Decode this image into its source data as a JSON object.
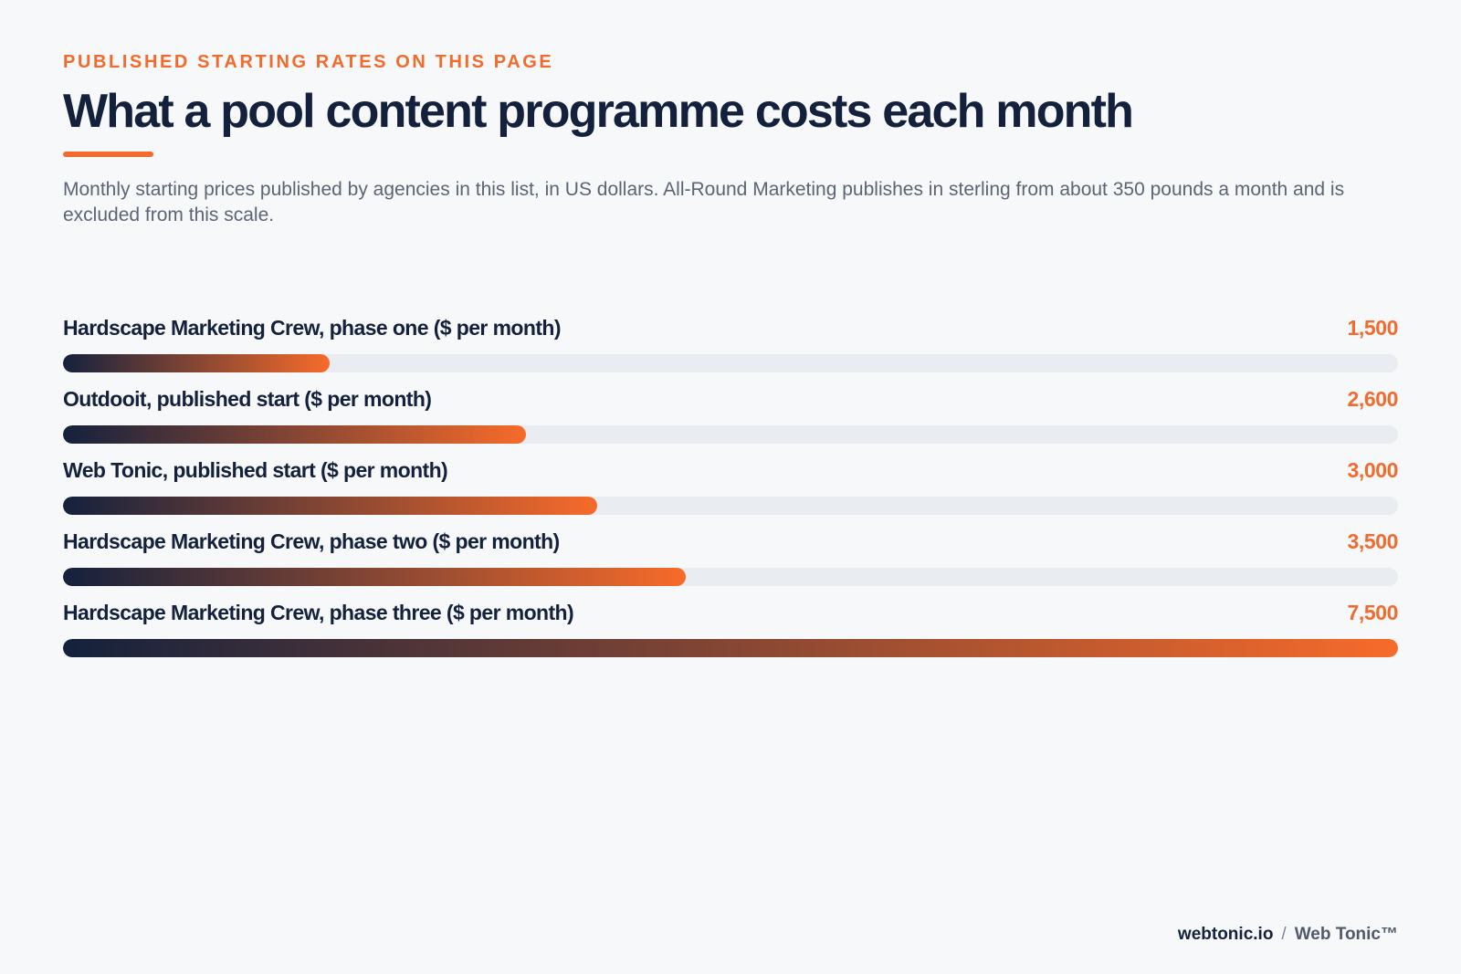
{
  "header": {
    "eyebrow": "PUBLISHED STARTING RATES ON THIS PAGE",
    "title": "What a pool content programme costs each month",
    "subtitle": "Monthly starting prices published by agencies in this list, in US dollars. All-Round Marketing publishes in sterling from about 350 pounds a month and is excluded from this scale."
  },
  "footer": {
    "site": "webtonic.io",
    "separator": "/",
    "brand": "Web Tonic™"
  },
  "colors": {
    "accent": "#f26a2c",
    "navy": "#14213d",
    "track": "#e9edf1",
    "gradient_start": "#14213d",
    "gradient_end": "#f76b2a"
  },
  "chart_data": {
    "type": "bar",
    "orientation": "horizontal",
    "title": "What a pool content programme costs each month",
    "categories": [
      "Hardscape Marketing Crew, phase one ($ per month)",
      "Outdooit, published start ($ per month)",
      "Web Tonic, published start ($ per month)",
      "Hardscape Marketing Crew, phase two ($ per month)",
      "Hardscape Marketing Crew, phase three ($ per month)"
    ],
    "values": [
      1500,
      2600,
      3000,
      3500,
      7500
    ],
    "value_labels": [
      "1,500",
      "2,600",
      "3,000",
      "3,500",
      "7,500"
    ],
    "xlim": [
      0,
      7500
    ],
    "grid": false,
    "legend": "none"
  }
}
